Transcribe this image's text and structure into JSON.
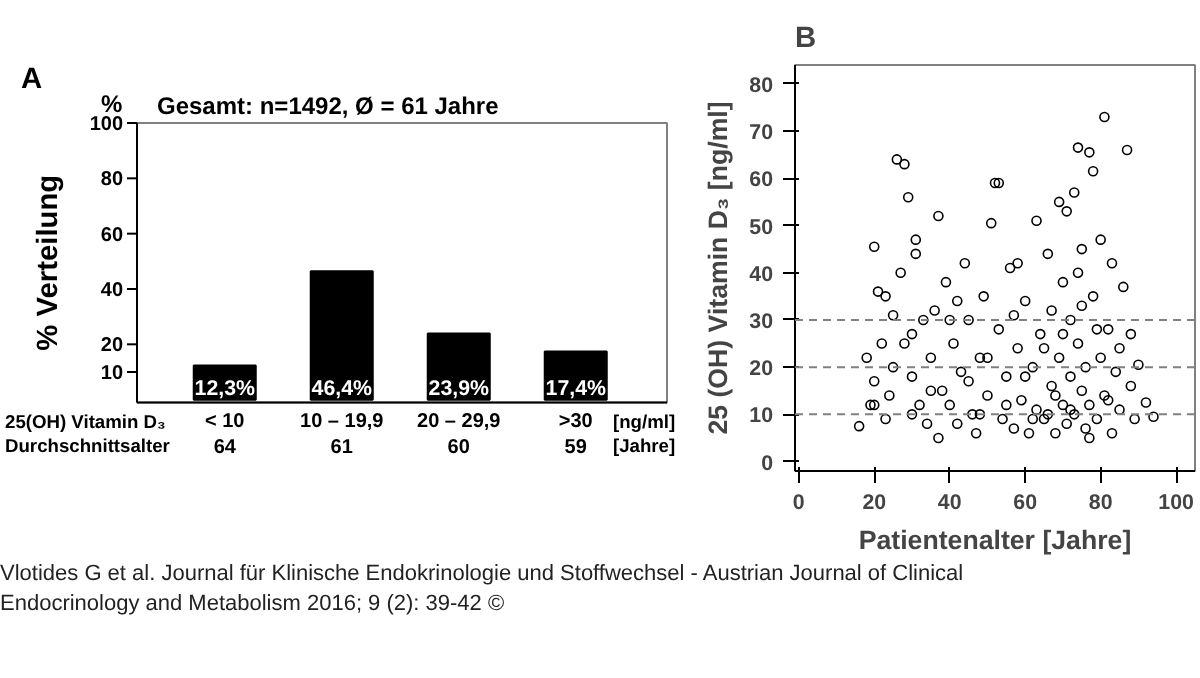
{
  "chart_data": [
    {
      "type": "bar",
      "title": "Gesamt: n=1492, Ø = 61 Jahre",
      "ylabel": "% Verteilung",
      "xlabel": "25(OH) Vitamin D₃",
      "categories": [
        "< 10",
        "10 – 19,9",
        "20 – 29,9",
        ">30"
      ],
      "values": [
        12.3,
        46.4,
        23.9,
        17.4
      ],
      "value_labels": [
        "12,3%",
        "46,4%",
        "23,9%",
        "17,4%"
      ],
      "color": "#000000",
      "ylim": [
        -1,
        100
      ],
      "yticks": [
        10,
        20,
        40,
        60,
        80,
        100
      ],
      "grid": false,
      "annotations": [
        "A",
        "%",
        "[ng/ml]",
        "Durchschnittsalter",
        "64",
        "61",
        "60",
        "59",
        "[Jahre]",
        "Vlotides G et al. Journal für Klinische Endokrinologie und Stoffwechsel - Austrian Journal of Clinical Endocrinology and Metabolism 2016; 9 (2): 39-42 ©"
      ]
    },
    {
      "type": "scatter",
      "xlabel": "Patientenalter [Jahre]",
      "ylabel": "25 (OH) Vitamin D₃ [ng/ml]",
      "marker": "circle",
      "color": "#000000",
      "grid": false,
      "xlim": [
        -1,
        105
      ],
      "xticks": [
        0,
        20,
        40,
        60,
        80,
        100
      ],
      "ylim": [
        -2,
        84
      ],
      "yticks": [
        0,
        10,
        20,
        30,
        40,
        50,
        60,
        70,
        80
      ],
      "ref_lines": [
        {
          "axis": "y",
          "value": 10,
          "color": "#808080",
          "line_style": "dashed"
        },
        {
          "axis": "y",
          "value": 20,
          "color": "#808080",
          "line_style": "dashed"
        },
        {
          "axis": "y",
          "value": 30,
          "color": "#808080",
          "line_style": "dashed"
        }
      ],
      "annotations": [
        "B"
      ],
      "x": [
        16,
        18,
        19,
        20,
        20,
        21,
        22,
        23,
        24,
        25,
        26,
        27,
        28,
        29,
        30,
        31,
        31,
        32,
        33,
        34,
        35,
        36,
        37,
        37,
        38,
        39,
        40,
        41,
        42,
        43,
        44,
        45,
        46,
        47,
        48,
        49,
        50,
        51,
        52,
        53,
        53,
        54,
        55,
        56,
        57,
        58,
        59,
        60,
        61,
        62,
        63,
        63,
        64,
        65,
        66,
        67,
        68,
        69,
        69,
        70,
        70,
        71,
        71,
        72,
        72,
        73,
        73,
        74,
        74,
        75,
        75,
        76,
        76,
        77,
        77,
        78,
        78,
        79,
        80,
        80,
        81,
        81,
        82,
        83,
        84,
        85,
        86,
        87,
        88,
        89,
        90,
        92,
        94,
        20,
        25,
        30,
        35,
        40,
        45,
        50,
        55,
        57,
        60,
        62,
        65,
        67,
        68,
        70,
        72,
        75,
        77,
        79,
        82,
        85,
        88,
        30,
        42,
        48,
        58,
        66,
        74,
        83,
        23,
        28
      ],
      "values": [
        7.5,
        22,
        12,
        45.5,
        17,
        36,
        25,
        9,
        14,
        31,
        64,
        40,
        63,
        56,
        18,
        47,
        44,
        12,
        30,
        8,
        22,
        32,
        52,
        5,
        15,
        38,
        12,
        25,
        8,
        19,
        42,
        30,
        10,
        6,
        22,
        35,
        14,
        50.5,
        59,
        59,
        28,
        9,
        18,
        41,
        7,
        24,
        13,
        34,
        6,
        20,
        51,
        11,
        27,
        9,
        44,
        16,
        6,
        55,
        22,
        12,
        38,
        53,
        8,
        18,
        30,
        57,
        10,
        66.5,
        25,
        15,
        45,
        7,
        20,
        65.5,
        12,
        61.5,
        35,
        9,
        22,
        47,
        73,
        14,
        28,
        6,
        19,
        11,
        37,
        66,
        16,
        9,
        20.5,
        12.5,
        9.5,
        12,
        20,
        27,
        15,
        30,
        17,
        22,
        12,
        31,
        18,
        9,
        24,
        32,
        14,
        27,
        11,
        33,
        5,
        28,
        13,
        24,
        27,
        10,
        34,
        10,
        42,
        10,
        40,
        42,
        35,
        25
      ]
    }
  ]
}
